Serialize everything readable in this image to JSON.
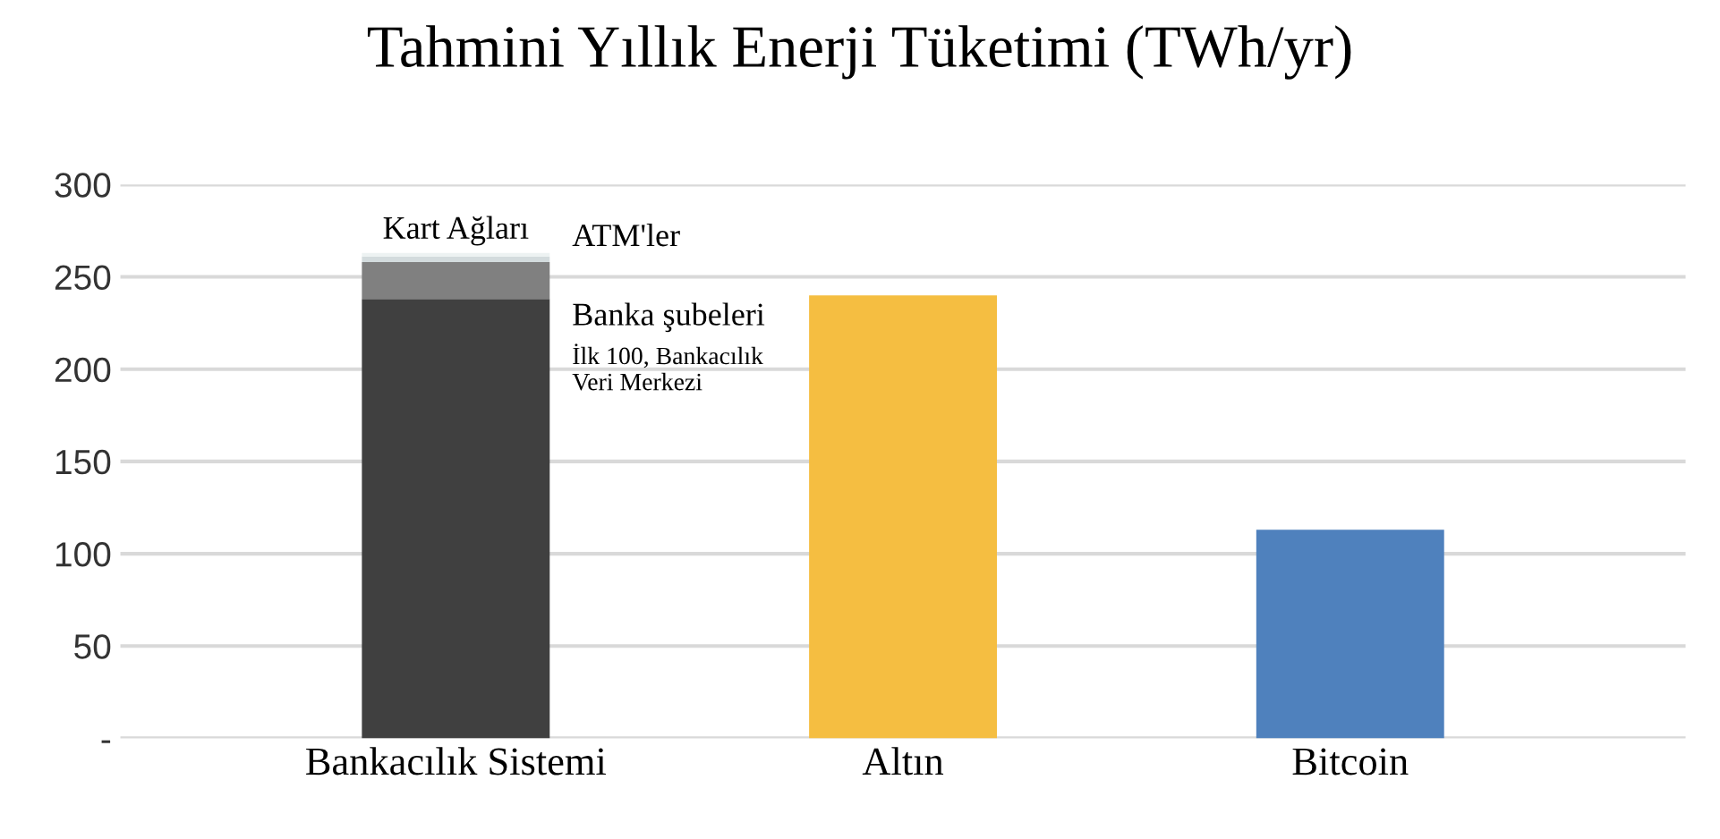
{
  "chart_data": {
    "type": "bar",
    "title": "Tahmini Yıllık Enerji Tüketimi (TWh/yr)",
    "categories": [
      "Bankacılık Sistemi",
      "Altın",
      "Bitcoin"
    ],
    "stacked": true,
    "series": [
      {
        "name": "İlk 100, Bankacılık\nVeri Merkezi",
        "colors": [
          "#404040",
          "#f5be41",
          "#4f81bd"
        ],
        "values": [
          238,
          240,
          113
        ]
      },
      {
        "name": "Banka şubeleri",
        "color": "#808080",
        "values": [
          20,
          null,
          null
        ]
      },
      {
        "name": "ATM'ler",
        "color": "#d3dbdd",
        "values": [
          3,
          null,
          null
        ]
      },
      {
        "name": "Kart Ağları",
        "color": "#edf2f2",
        "values": [
          2,
          null,
          null
        ]
      }
    ],
    "ylim": [
      0,
      300
    ],
    "yticks": [
      {
        "value": 0,
        "label": "-"
      },
      50,
      100,
      150,
      200,
      250,
      300
    ],
    "grid": "y",
    "legend": false
  }
}
